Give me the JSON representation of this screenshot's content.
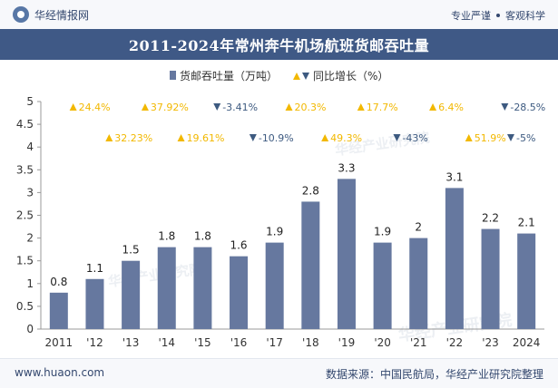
{
  "header": {
    "brand_name": "华经情报网",
    "tagline_left": "专业严谨",
    "tagline_right": "客观科学"
  },
  "footer": {
    "website": "www.huaon.com",
    "source": "数据来源：中国民航局，华经产业研究院整理"
  },
  "watermark": "华经产业研究院",
  "colors": {
    "bar": "#66789f",
    "up": "#f2b800",
    "down": "#3d5a80",
    "title_bg": "#3f5986"
  },
  "chart_data": {
    "type": "bar",
    "title": "2011-2024年常州奔牛机场航班货邮吞吐量",
    "categories": [
      "2011",
      "'12",
      "'13",
      "'14",
      "'15",
      "'16",
      "'17",
      "'18",
      "'19",
      "'20",
      "'21",
      "'22",
      "'23",
      "2024"
    ],
    "series": [
      {
        "name": "货邮吞吐量（万吨）",
        "values": [
          0.8,
          1.1,
          1.5,
          1.8,
          1.8,
          1.6,
          1.9,
          2.8,
          3.3,
          1.9,
          2,
          3.1,
          2.2,
          2.1
        ],
        "labels": [
          "0.8",
          "1.1",
          "1.5",
          "1.8",
          "1.8",
          "1.6",
          "1.9",
          "2.8",
          "3.3",
          "1.9",
          "2",
          "3.1",
          "2.2",
          "2.1"
        ]
      },
      {
        "name": "同比增长（%）",
        "labels": [
          "",
          "24.4%",
          "32.23%",
          "37.92%",
          "19.61%",
          "-3.41%",
          "-10.9%",
          "20.3%",
          "49.3%",
          "17.7%",
          "-43%",
          "6.4%",
          "51.9%",
          "-28.5%"
        ],
        "direction": [
          "",
          "up",
          "up",
          "up",
          "up",
          "down",
          "down",
          "up",
          "up",
          "up",
          "down",
          "up",
          "up",
          "down"
        ],
        "trailing_label": "-5%",
        "trailing_direction": "down"
      }
    ],
    "yticks": [
      "0",
      "0.5",
      "1",
      "1.5",
      "2",
      "2.5",
      "3",
      "3.5",
      "4",
      "4.5",
      "5"
    ],
    "ylim": [
      0,
      5
    ],
    "legend_position": "top-center",
    "grid": false
  }
}
